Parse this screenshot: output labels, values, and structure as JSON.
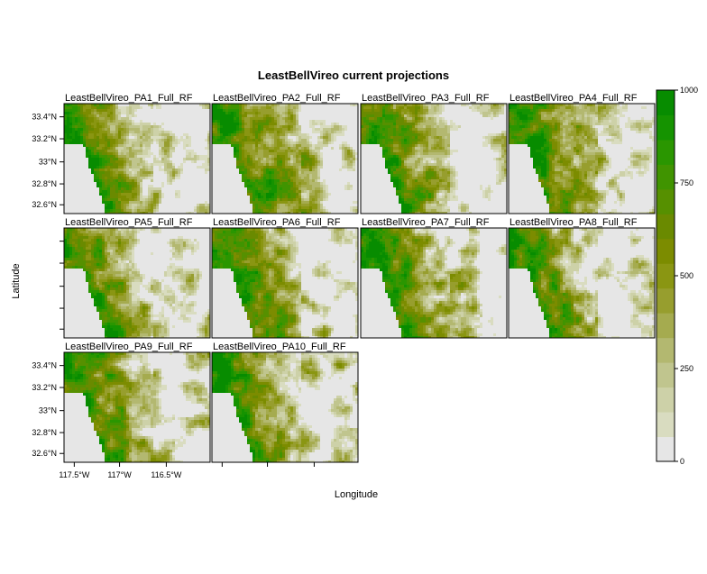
{
  "chart_data": {
    "type": "heatmap",
    "title": "LeastBellVireo current projections",
    "xlabel": "Longitude",
    "ylabel": "Latitude",
    "x_ticks": [
      "117.5°W",
      "117°W",
      "116.5°W"
    ],
    "y_ticks": [
      "33.4°N",
      "33.2°N",
      "33°N",
      "32.8°N",
      "32.6°N"
    ],
    "panels": [
      {
        "name": "LeastBellVireo_PA1_Full_RF",
        "spread": 0.5
      },
      {
        "name": "LeastBellVireo_PA2_Full_RF",
        "spread": 0.62
      },
      {
        "name": "LeastBellVireo_PA3_Full_RF",
        "spread": 0.55
      },
      {
        "name": "LeastBellVireo_PA4_Full_RF",
        "spread": 0.58
      },
      {
        "name": "LeastBellVireo_PA5_Full_RF",
        "spread": 0.48
      },
      {
        "name": "LeastBellVireo_PA6_Full_RF",
        "spread": 0.6
      },
      {
        "name": "LeastBellVireo_PA7_Full_RF",
        "spread": 0.56
      },
      {
        "name": "LeastBellVireo_PA8_Full_RF",
        "spread": 0.5
      },
      {
        "name": "LeastBellVireo_PA9_Full_RF",
        "spread": 0.52
      },
      {
        "name": "LeastBellVireo_PA10_Full_RF",
        "spread": 0.5
      }
    ],
    "colorbar": {
      "min": 0,
      "max": 1000,
      "ticks": [
        0,
        250,
        500,
        750,
        1000
      ],
      "levels": [
        "#e6e6e6",
        "#d9dcc0",
        "#cdd1a8",
        "#c0c58e",
        "#b3b870",
        "#a5ab4f",
        "#979e2e",
        "#8a9612",
        "#7c8c00",
        "#6a8a00",
        "#569000",
        "#409400",
        "#2a9600",
        "#159300",
        "#078c00"
      ]
    }
  }
}
